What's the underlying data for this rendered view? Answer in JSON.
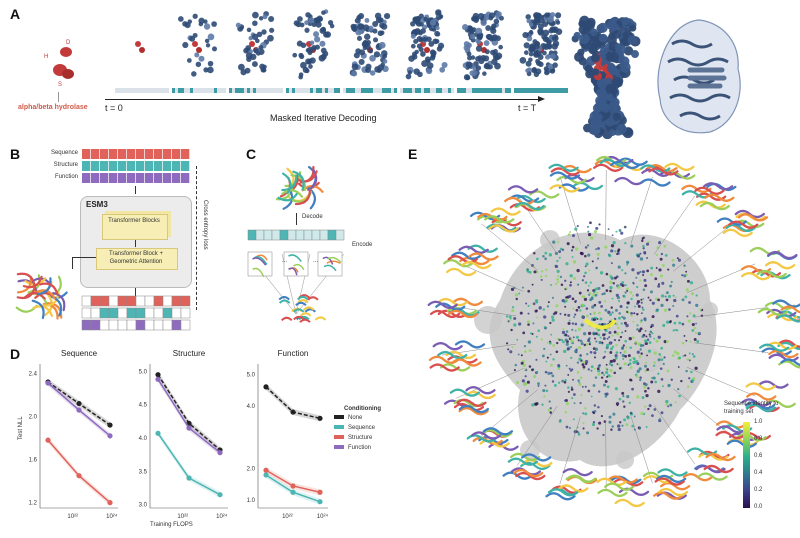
{
  "panels": {
    "a": "A",
    "b": "B",
    "c": "C",
    "d": "D",
    "e": "E"
  },
  "panel_a": {
    "labels": {
      "h": "H",
      "d": "D",
      "s": "S"
    },
    "fold_name": "alpha/beta hydrolase",
    "t_start": "t = 0",
    "t_end": "t = T",
    "axis_caption": "Masked Iterative Decoding"
  },
  "panel_b": {
    "track_labels": [
      "Sequence",
      "Structure",
      "Function"
    ],
    "model_name": "ESM3",
    "block_top": "Transformer Blocks",
    "block_bottom": "Transformer Block + Geometric Attention",
    "loss_label": "Cross entropy loss",
    "colors": {
      "sequence": "#e0625a",
      "structure": "#4db6b4",
      "function": "#8e6bbf"
    }
  },
  "panel_c": {
    "decode": "Decode",
    "encode": "Encode",
    "ellipsis": "..."
  },
  "panel_d": {
    "xlabel": "Training FLOPS",
    "ylabel": "Test NLL",
    "legend_title": "Conditioning",
    "legend": [
      {
        "name": "None",
        "color": "#222222"
      },
      {
        "name": "Sequence",
        "color": "#4db6b4"
      },
      {
        "name": "Structure",
        "color": "#e0625a"
      },
      {
        "name": "Function",
        "color": "#8e6bbf"
      }
    ]
  },
  "chart_data": [
    {
      "type": "line",
      "title": "Sequence",
      "xlabel": "",
      "ylabel": "Test NLL",
      "x": [
        "1e21",
        "1e22",
        "1e23"
      ],
      "xticks": [
        "10²²",
        "10²⁴"
      ],
      "yticks": [
        "1.2",
        "1.6",
        "2.0",
        "2.4"
      ],
      "ylim": [
        1.15,
        2.45
      ],
      "series": [
        {
          "name": "None",
          "values": [
            2.32,
            2.12,
            1.92
          ]
        },
        {
          "name": "Function",
          "values": [
            2.31,
            2.06,
            1.82
          ]
        },
        {
          "name": "Structure",
          "values": [
            1.78,
            1.45,
            1.2
          ]
        }
      ]
    },
    {
      "type": "line",
      "title": "Structure",
      "xlabel": "Training FLOPS",
      "ylabel": "",
      "x": [
        "1e21",
        "1e22",
        "1e23"
      ],
      "xticks": [
        "10²²",
        "10²⁴"
      ],
      "yticks": [
        "3.0",
        "3.5",
        "4.0",
        "4.5",
        "5.0"
      ],
      "ylim": [
        2.95,
        5.05
      ],
      "series": [
        {
          "name": "None",
          "values": [
            4.95,
            4.22,
            3.82
          ]
        },
        {
          "name": "Function",
          "values": [
            4.88,
            4.15,
            3.78
          ]
        },
        {
          "name": "Sequence",
          "values": [
            4.07,
            3.4,
            3.15
          ]
        }
      ]
    },
    {
      "type": "line",
      "title": "Function",
      "xlabel": "",
      "ylabel": "",
      "x": [
        "1e21",
        "1e22",
        "1e23"
      ],
      "xticks": [
        "10²²",
        "10²⁴"
      ],
      "yticks": [
        "1.0",
        "2.0",
        "4.0",
        "5.0"
      ],
      "ylim": [
        0.75,
        5.2
      ],
      "series": [
        {
          "name": "None",
          "values": [
            4.6,
            3.8,
            3.6
          ]
        },
        {
          "name": "Structure",
          "values": [
            1.95,
            1.45,
            1.25
          ]
        },
        {
          "name": "Sequence",
          "values": [
            1.8,
            1.25,
            0.95
          ]
        }
      ]
    }
  ],
  "panel_e": {
    "colorbar_title": "Sequence identity to training set",
    "colorbar_ticks": [
      "0.0",
      "0.2",
      "0.4",
      "0.6",
      "0.8",
      "1.0"
    ]
  }
}
